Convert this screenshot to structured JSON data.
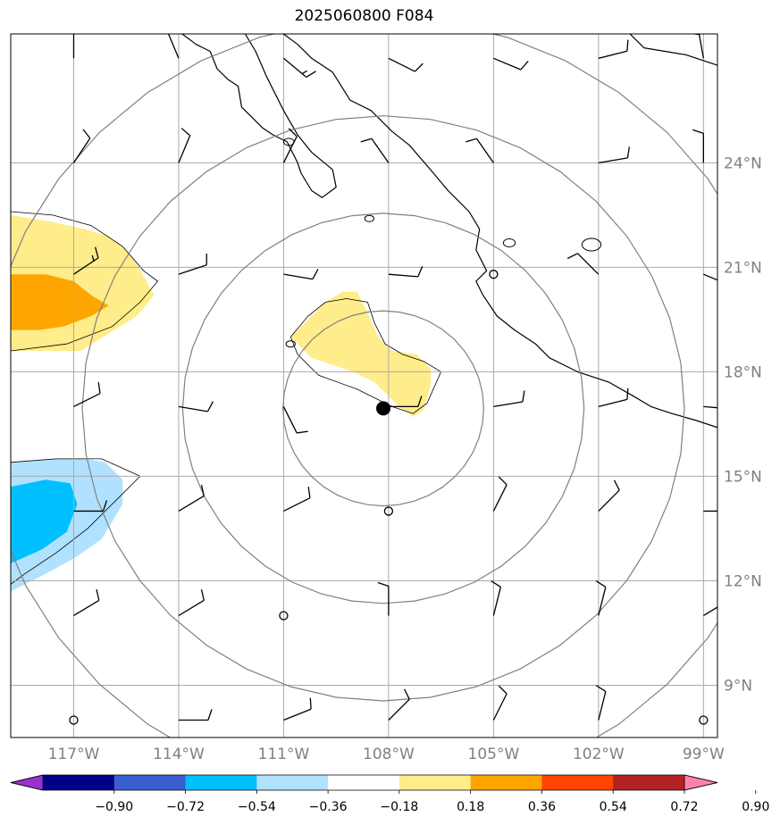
{
  "title": "2025060800 F084",
  "map": {
    "extent": {
      "lon_min": -118.8,
      "lon_max": -98.6,
      "lat_min": 7.5,
      "lat_max": 27.7
    },
    "lon_ticks": [
      {
        "lon": -117,
        "label": "117°W"
      },
      {
        "lon": -114,
        "label": "114°W"
      },
      {
        "lon": -111,
        "label": "111°W"
      },
      {
        "lon": -108,
        "label": "108°W"
      },
      {
        "lon": -105,
        "label": "105°W"
      },
      {
        "lon": -102,
        "label": "102°W"
      },
      {
        "lon": -99,
        "label": "99°W"
      }
    ],
    "lat_ticks": [
      {
        "lat": 24,
        "label": "24°N"
      },
      {
        "lat": 21,
        "label": "21°N"
      },
      {
        "lat": 18,
        "label": "18°N"
      },
      {
        "lat": 15,
        "label": "15°N"
      },
      {
        "lat": 12,
        "label": "12°N"
      },
      {
        "lat": 9,
        "label": "9°N"
      }
    ],
    "storm_center": {
      "lon": -108.15,
      "lat": 16.95
    },
    "range_rings_deg": [
      2.8,
      5.6,
      8.4,
      11.2
    ],
    "positive_region_outer": [
      [
        -110.8,
        19.0
      ],
      [
        -110.2,
        19.6
      ],
      [
        -109.8,
        20.0
      ],
      [
        -109.3,
        20.3
      ],
      [
        -108.9,
        20.3
      ],
      [
        -108.6,
        19.7
      ],
      [
        -108.3,
        19.0
      ],
      [
        -107.9,
        18.6
      ],
      [
        -107.2,
        18.5
      ],
      [
        -106.8,
        18.1
      ],
      [
        -106.8,
        17.6
      ],
      [
        -107.0,
        16.9
      ],
      [
        -107.3,
        16.7
      ],
      [
        -107.7,
        17.0
      ],
      [
        -108.4,
        17.7
      ],
      [
        -109.0,
        18.0
      ],
      [
        -110.2,
        18.4
      ]
    ],
    "positive_region_west_outer": [
      [
        -118.8,
        22.5
      ],
      [
        -117.6,
        22.3
      ],
      [
        -116.7,
        22.1
      ],
      [
        -116.0,
        21.9
      ],
      [
        -115.5,
        21.5
      ],
      [
        -115.2,
        21.1
      ],
      [
        -114.7,
        20.2
      ],
      [
        -115.2,
        19.6
      ],
      [
        -116.0,
        19.1
      ],
      [
        -116.8,
        18.6
      ],
      [
        -117.9,
        18.6
      ],
      [
        -118.8,
        18.6
      ]
    ],
    "positive_region_west_inner": [
      [
        -118.8,
        20.8
      ],
      [
        -117.8,
        20.8
      ],
      [
        -117.0,
        20.6
      ],
      [
        -116.5,
        20.2
      ],
      [
        -116.0,
        19.9
      ],
      [
        -116.5,
        19.6
      ],
      [
        -117.3,
        19.3
      ],
      [
        -118.0,
        19.2
      ],
      [
        -118.8,
        19.2
      ]
    ],
    "negative_region_outer": [
      [
        -118.8,
        15.4
      ],
      [
        -117.7,
        15.5
      ],
      [
        -116.7,
        15.5
      ],
      [
        -116.1,
        15.4
      ],
      [
        -115.6,
        14.9
      ],
      [
        -115.6,
        14.2
      ],
      [
        -116.2,
        13.2
      ],
      [
        -116.9,
        12.7
      ],
      [
        -117.8,
        12.2
      ],
      [
        -118.2,
        12.0
      ],
      [
        -118.8,
        11.7
      ]
    ],
    "negative_region_inner": [
      [
        -118.8,
        14.7
      ],
      [
        -117.8,
        14.9
      ],
      [
        -117.1,
        14.8
      ],
      [
        -116.9,
        14.2
      ],
      [
        -117.2,
        13.4
      ],
      [
        -117.9,
        12.9
      ],
      [
        -118.8,
        12.5
      ]
    ],
    "contour_lines": [
      [
        [
          -110.8,
          19.0
        ],
        [
          -110.3,
          19.6
        ],
        [
          -109.8,
          20.0
        ],
        [
          -109.2,
          20.1
        ],
        [
          -108.6,
          20.0
        ],
        [
          -108.4,
          19.4
        ],
        [
          -108.1,
          18.8
        ],
        [
          -107.6,
          18.5
        ],
        [
          -107.0,
          18.3
        ],
        [
          -106.5,
          18.0
        ],
        [
          -106.9,
          17.1
        ],
        [
          -107.3,
          16.8
        ],
        [
          -107.9,
          17.0
        ],
        [
          -108.9,
          17.5
        ],
        [
          -110.0,
          17.9
        ],
        [
          -110.6,
          18.5
        ],
        [
          -110.8,
          19.0
        ]
      ],
      [
        [
          -118.8,
          22.6
        ],
        [
          -117.6,
          22.5
        ],
        [
          -116.5,
          22.2
        ],
        [
          -115.6,
          21.6
        ],
        [
          -115.0,
          20.9
        ],
        [
          -114.6,
          20.6
        ],
        [
          -115.1,
          20.0
        ],
        [
          -115.9,
          19.3
        ],
        [
          -117.2,
          18.8
        ],
        [
          -118.8,
          18.6
        ]
      ],
      [
        [
          -118.8,
          15.4
        ],
        [
          -117.5,
          15.5
        ],
        [
          -116.2,
          15.5
        ],
        [
          -115.1,
          15.0
        ],
        [
          -115.8,
          14.3
        ],
        [
          -116.6,
          13.5
        ],
        [
          -117.5,
          12.8
        ],
        [
          -118.4,
          12.2
        ],
        [
          -118.8,
          11.9
        ]
      ]
    ],
    "coastline": [
      [
        [
          -113.9,
          27.7
        ],
        [
          -113.5,
          27.4
        ],
        [
          -113.1,
          27.2
        ],
        [
          -112.9,
          26.7
        ],
        [
          -112.6,
          26.4
        ],
        [
          -112.3,
          26.2
        ],
        [
          -112.2,
          25.6
        ],
        [
          -111.9,
          25.3
        ],
        [
          -111.6,
          25.0
        ],
        [
          -111.3,
          24.8
        ],
        [
          -110.9,
          24.6
        ],
        [
          -110.6,
          24.0
        ],
        [
          -110.5,
          23.7
        ],
        [
          -110.2,
          23.2
        ],
        [
          -109.9,
          23.0
        ],
        [
          -109.5,
          23.3
        ],
        [
          -109.6,
          23.8
        ],
        [
          -110.2,
          24.3
        ],
        [
          -110.6,
          24.8
        ],
        [
          -111.0,
          25.5
        ],
        [
          -111.5,
          26.5
        ],
        [
          -111.8,
          27.2
        ],
        [
          -112.1,
          27.7
        ]
      ],
      [
        [
          -111.0,
          27.7
        ],
        [
          -110.6,
          27.4
        ],
        [
          -110.2,
          27.0
        ],
        [
          -109.6,
          26.6
        ],
        [
          -109.1,
          25.8
        ],
        [
          -108.5,
          25.5
        ],
        [
          -107.9,
          24.9
        ],
        [
          -107.4,
          24.5
        ],
        [
          -106.8,
          23.8
        ],
        [
          -106.3,
          23.2
        ],
        [
          -105.7,
          22.6
        ],
        [
          -105.4,
          22.1
        ],
        [
          -105.5,
          21.5
        ],
        [
          -105.2,
          20.9
        ],
        [
          -105.5,
          20.6
        ],
        [
          -105.3,
          20.2
        ],
        [
          -104.9,
          19.6
        ],
        [
          -104.4,
          19.2
        ],
        [
          -103.8,
          18.8
        ],
        [
          -103.4,
          18.4
        ],
        [
          -102.6,
          18.0
        ],
        [
          -101.7,
          17.7
        ],
        [
          -101.0,
          17.3
        ],
        [
          -100.5,
          17.0
        ],
        [
          -99.9,
          16.8
        ],
        [
          -99.2,
          16.6
        ],
        [
          -98.6,
          16.4
        ]
      ],
      [
        [
          -101.1,
          27.7
        ],
        [
          -100.7,
          27.3
        ],
        [
          -100.1,
          27.2
        ],
        [
          -99.5,
          27.1
        ],
        [
          -98.9,
          26.9
        ],
        [
          -98.6,
          26.8
        ]
      ]
    ],
    "islands": [
      {
        "lon": -110.85,
        "lat": 24.6,
        "r": 0.1
      },
      {
        "lon": -108.55,
        "lat": 22.4,
        "r": 0.08
      },
      {
        "lon": -110.8,
        "lat": 18.8,
        "r": 0.08
      },
      {
        "lon": -104.55,
        "lat": 21.7,
        "r": 0.12
      },
      {
        "lon": -102.2,
        "lat": 21.65,
        "r": 0.22
      }
    ],
    "wind_stations": [
      {
        "lon": -117,
        "lat": 27,
        "u": 0,
        "v": -12
      },
      {
        "lon": -114,
        "lat": 27,
        "u": 5,
        "v": -12
      },
      {
        "lon": -111,
        "lat": 27,
        "u": -12,
        "v": 10
      },
      {
        "lon": -108,
        "lat": 27,
        "u": -12,
        "v": 6
      },
      {
        "lon": -105,
        "lat": 27,
        "u": -12,
        "v": 5
      },
      {
        "lon": -102,
        "lat": 27,
        "u": -12,
        "v": -3
      },
      {
        "lon": -99,
        "lat": 27,
        "u": 3,
        "v": -17
      },
      {
        "lon": -117,
        "lat": 24,
        "u": -8,
        "v": -12
      },
      {
        "lon": -114,
        "lat": 24,
        "u": -5,
        "v": -12
      },
      {
        "lon": -111,
        "lat": 24,
        "u": -5,
        "v": -10
      },
      {
        "lon": -108,
        "lat": 24,
        "u": 7,
        "v": -10
      },
      {
        "lon": -105,
        "lat": 24,
        "u": 7,
        "v": -10
      },
      {
        "lon": -102,
        "lat": 24,
        "u": -12,
        "v": -2
      },
      {
        "lon": -99,
        "lat": 24,
        "u": 0,
        "v": -12
      },
      {
        "lon": -117,
        "lat": 20.8,
        "u": -15,
        "v": -10
      },
      {
        "lon": -114,
        "lat": 20.8,
        "u": -12,
        "v": -4
      },
      {
        "lon": -111,
        "lat": 20.8,
        "u": -12,
        "v": 2
      },
      {
        "lon": -108,
        "lat": 20.8,
        "u": -12,
        "v": 1
      },
      {
        "lon": -105,
        "lat": 20.8,
        "u": 0,
        "v": 0
      },
      {
        "lon": -102,
        "lat": 20.8,
        "u": 10,
        "v": -10
      },
      {
        "lon": -99,
        "lat": 20.8,
        "u": -12,
        "v": 5
      },
      {
        "lon": -117,
        "lat": 17.0,
        "u": -12,
        "v": -6
      },
      {
        "lon": -114,
        "lat": 17.0,
        "u": -12,
        "v": 2
      },
      {
        "lon": -111,
        "lat": 17.0,
        "u": -5,
        "v": 10
      },
      {
        "lon": -108,
        "lat": 17.0,
        "u": -10,
        "v": 0
      },
      {
        "lon": -105,
        "lat": 17.0,
        "u": -12,
        "v": -2
      },
      {
        "lon": -102,
        "lat": 17.0,
        "u": -12,
        "v": -3
      },
      {
        "lon": -99,
        "lat": 17.0,
        "u": -12,
        "v": 1
      },
      {
        "lon": -117,
        "lat": 14.0,
        "u": -12,
        "v": 0
      },
      {
        "lon": -114,
        "lat": 14.0,
        "u": -10,
        "v": -6
      },
      {
        "lon": -111,
        "lat": 14.0,
        "u": -10,
        "v": -5
      },
      {
        "lon": -108,
        "lat": 14.0,
        "u": 0,
        "v": 0
      },
      {
        "lon": -105,
        "lat": 14.0,
        "u": -5,
        "v": -10
      },
      {
        "lon": -102,
        "lat": 14.0,
        "u": -10,
        "v": -10
      },
      {
        "lon": -99,
        "lat": 14.0,
        "u": -12,
        "v": 0
      },
      {
        "lon": -117,
        "lat": 11.0,
        "u": -10,
        "v": -6
      },
      {
        "lon": -114,
        "lat": 11.0,
        "u": -10,
        "v": -6
      },
      {
        "lon": -111,
        "lat": 11.0,
        "u": 0,
        "v": 0
      },
      {
        "lon": -108,
        "lat": 11.0,
        "u": 0,
        "v": -12
      },
      {
        "lon": -105,
        "lat": 11.0,
        "u": -3,
        "v": -12
      },
      {
        "lon": -102,
        "lat": 11.0,
        "u": -3,
        "v": -12
      },
      {
        "lon": -99,
        "lat": 11.0,
        "u": -10,
        "v": -6
      },
      {
        "lon": -117,
        "lat": 8.0,
        "u": 0,
        "v": 0
      },
      {
        "lon": -114,
        "lat": 8.0,
        "u": -12,
        "v": 0
      },
      {
        "lon": -111,
        "lat": 8.0,
        "u": -10,
        "v": -4
      },
      {
        "lon": -108,
        "lat": 8.0,
        "u": -8,
        "v": -8
      },
      {
        "lon": -105,
        "lat": 8.0,
        "u": -5,
        "v": -10
      },
      {
        "lon": -102,
        "lat": 8.0,
        "u": -3,
        "v": -12
      },
      {
        "lon": -99,
        "lat": 8.0,
        "u": 0,
        "v": 0
      }
    ]
  },
  "colorbar": {
    "colors": [
      "#9932cc",
      "#00008b",
      "#3a5fcd",
      "#00bfff",
      "#b0e2ff",
      "#ffffff",
      "#ffec8b",
      "#ffa500",
      "#ff4500",
      "#b22222",
      "#ff82ab"
    ],
    "tick_labels": [
      "−0.90",
      "−0.72",
      "−0.54",
      "−0.36",
      "−0.18",
      "0.18",
      "0.36",
      "0.54",
      "0.72",
      "0.90"
    ]
  },
  "colors": {
    "positive_light": "#ffec8b",
    "positive_medium": "#ffa500",
    "negative_light": "#b0e2ff",
    "negative_medium": "#00bfff",
    "grid": "#a9a9a9",
    "ring": "#808080"
  }
}
